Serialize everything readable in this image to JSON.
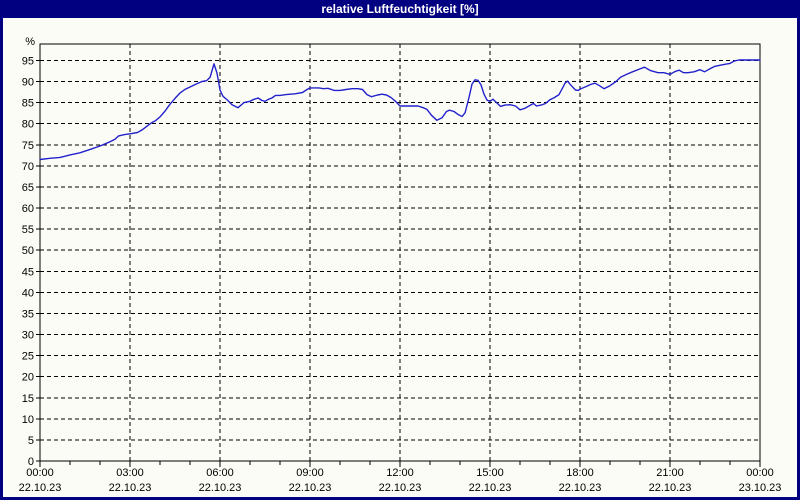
{
  "window": {
    "title": "relative Luftfeuchtigkeit [%]",
    "titlebar_bg": "#000080",
    "title_color": "#ffffff",
    "border_color": "#000080",
    "content_bg": "#fcfcf7"
  },
  "chart_data": {
    "type": "line",
    "title": "relative Luftfeuchtigkeit [%]",
    "xlabel": "",
    "ylabel": "%",
    "grid": "dashed",
    "grid_color": "#000000",
    "line_color": "#2222cc",
    "legend": "none",
    "ylim": [
      0,
      98.9
    ],
    "xlim_hours": [
      0,
      24
    ],
    "y_ticks": [
      0,
      5,
      10,
      15,
      20,
      25,
      30,
      35,
      40,
      45,
      50,
      55,
      60,
      65,
      70,
      75,
      80,
      85,
      90,
      95
    ],
    "x_minor_step_hours": 1,
    "x_major_ticks": [
      {
        "hour": 0,
        "time": "00:00",
        "date": "22.10.23"
      },
      {
        "hour": 3,
        "time": "03:00",
        "date": "22.10.23"
      },
      {
        "hour": 6,
        "time": "06:00",
        "date": "22.10.23"
      },
      {
        "hour": 9,
        "time": "09:00",
        "date": "22.10.23"
      },
      {
        "hour": 12,
        "time": "12:00",
        "date": "22.10.23"
      },
      {
        "hour": 15,
        "time": "15:00",
        "date": "22.10.23"
      },
      {
        "hour": 18,
        "time": "18:00",
        "date": "22.10.23"
      },
      {
        "hour": 21,
        "time": "21:00",
        "date": "22.10.23"
      },
      {
        "hour": 24,
        "time": "00:00",
        "date": "23.10.23"
      }
    ],
    "series": [
      {
        "name": "relative Luftfeuchtigkeit",
        "unit": "%",
        "points": [
          [
            0,
            71.5
          ],
          [
            0.33,
            71.8
          ],
          [
            0.67,
            72.0
          ],
          [
            1.0,
            72.6
          ],
          [
            1.33,
            73.1
          ],
          [
            1.67,
            73.9
          ],
          [
            2.0,
            74.7
          ],
          [
            2.33,
            75.7
          ],
          [
            2.5,
            76.3
          ],
          [
            2.62,
            77.1
          ],
          [
            2.8,
            77.4
          ],
          [
            3.0,
            77.6
          ],
          [
            3.25,
            77.9
          ],
          [
            3.42,
            78.6
          ],
          [
            3.58,
            79.5
          ],
          [
            3.72,
            80.2
          ],
          [
            3.85,
            80.7
          ],
          [
            4.0,
            81.6
          ],
          [
            4.17,
            83.0
          ],
          [
            4.33,
            84.6
          ],
          [
            4.5,
            86.0
          ],
          [
            4.67,
            87.3
          ],
          [
            4.85,
            88.2
          ],
          [
            5.0,
            88.7
          ],
          [
            5.2,
            89.4
          ],
          [
            5.4,
            90.0
          ],
          [
            5.55,
            90.2
          ],
          [
            5.67,
            91.0
          ],
          [
            5.8,
            94.2
          ],
          [
            5.9,
            92.0
          ],
          [
            6.0,
            88.0
          ],
          [
            6.1,
            86.5
          ],
          [
            6.25,
            85.6
          ],
          [
            6.4,
            84.5
          ],
          [
            6.6,
            83.8
          ],
          [
            6.8,
            85.0
          ],
          [
            7.0,
            85.3
          ],
          [
            7.1,
            85.7
          ],
          [
            7.27,
            86.1
          ],
          [
            7.4,
            85.5
          ],
          [
            7.5,
            85.3
          ],
          [
            7.62,
            85.8
          ],
          [
            7.73,
            86.1
          ],
          [
            7.85,
            86.7
          ],
          [
            8.0,
            86.7
          ],
          [
            8.2,
            86.9
          ],
          [
            8.5,
            87.1
          ],
          [
            8.75,
            87.4
          ],
          [
            8.9,
            88.1
          ],
          [
            9.0,
            88.5
          ],
          [
            9.3,
            88.5
          ],
          [
            9.45,
            88.3
          ],
          [
            9.6,
            88.4
          ],
          [
            9.8,
            87.9
          ],
          [
            10.0,
            87.9
          ],
          [
            10.2,
            88.1
          ],
          [
            10.4,
            88.3
          ],
          [
            10.6,
            88.3
          ],
          [
            10.75,
            88.1
          ],
          [
            10.9,
            86.9
          ],
          [
            11.05,
            86.4
          ],
          [
            11.25,
            86.8
          ],
          [
            11.4,
            87.0
          ],
          [
            11.55,
            86.8
          ],
          [
            11.7,
            86.2
          ],
          [
            11.85,
            85.3
          ],
          [
            12.0,
            84.2
          ],
          [
            12.3,
            84.2
          ],
          [
            12.6,
            84.2
          ],
          [
            12.77,
            83.8
          ],
          [
            12.9,
            83.4
          ],
          [
            13.05,
            82.0
          ],
          [
            13.23,
            80.8
          ],
          [
            13.4,
            81.4
          ],
          [
            13.55,
            82.9
          ],
          [
            13.65,
            83.2
          ],
          [
            13.8,
            82.9
          ],
          [
            13.95,
            82.1
          ],
          [
            14.07,
            81.7
          ],
          [
            14.17,
            82.6
          ],
          [
            14.3,
            86.2
          ],
          [
            14.4,
            89.4
          ],
          [
            14.5,
            90.4
          ],
          [
            14.6,
            90.3
          ],
          [
            14.7,
            89.2
          ],
          [
            14.8,
            87.0
          ],
          [
            14.9,
            85.6
          ],
          [
            15.0,
            85.3
          ],
          [
            15.1,
            85.8
          ],
          [
            15.25,
            84.8
          ],
          [
            15.35,
            84.1
          ],
          [
            15.5,
            84.4
          ],
          [
            15.67,
            84.5
          ],
          [
            15.85,
            84.2
          ],
          [
            16.0,
            83.3
          ],
          [
            16.15,
            83.6
          ],
          [
            16.35,
            84.4
          ],
          [
            16.45,
            84.8
          ],
          [
            16.55,
            84.2
          ],
          [
            16.7,
            84.4
          ],
          [
            16.85,
            84.8
          ],
          [
            17.0,
            85.7
          ],
          [
            17.15,
            86.2
          ],
          [
            17.3,
            86.9
          ],
          [
            17.42,
            88.5
          ],
          [
            17.5,
            89.6
          ],
          [
            17.58,
            90.1
          ],
          [
            17.7,
            89.1
          ],
          [
            17.85,
            88.0
          ],
          [
            17.95,
            87.9
          ],
          [
            18.0,
            88.2
          ],
          [
            18.2,
            88.8
          ],
          [
            18.35,
            89.3
          ],
          [
            18.5,
            89.6
          ],
          [
            18.65,
            89.0
          ],
          [
            18.8,
            88.3
          ],
          [
            19.0,
            89.0
          ],
          [
            19.2,
            90.0
          ],
          [
            19.35,
            91.0
          ],
          [
            19.55,
            91.7
          ],
          [
            19.75,
            92.3
          ],
          [
            20.0,
            93.0
          ],
          [
            20.15,
            93.4
          ],
          [
            20.35,
            92.6
          ],
          [
            20.6,
            92.1
          ],
          [
            20.8,
            92.1
          ],
          [
            21.0,
            91.7
          ],
          [
            21.15,
            92.3
          ],
          [
            21.3,
            92.7
          ],
          [
            21.45,
            92.1
          ],
          [
            21.6,
            92.1
          ],
          [
            21.8,
            92.3
          ],
          [
            22.0,
            92.8
          ],
          [
            22.15,
            92.3
          ],
          [
            22.3,
            92.9
          ],
          [
            22.5,
            93.6
          ],
          [
            22.7,
            93.9
          ],
          [
            22.85,
            94.1
          ],
          [
            23.0,
            94.3
          ],
          [
            23.15,
            94.9
          ],
          [
            23.3,
            95.1
          ],
          [
            23.6,
            95.1
          ],
          [
            24.0,
            95.1
          ]
        ]
      }
    ]
  }
}
